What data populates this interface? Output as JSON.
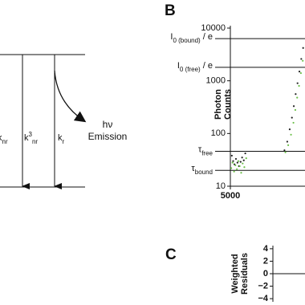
{
  "diagram": {
    "labels": [
      {
        "text": "k",
        "sub": "nr"
      },
      {
        "text": "k",
        "sup": "3",
        "sub": "nr"
      },
      {
        "text": "k",
        "sub": "r"
      }
    ],
    "emission": [
      "hν",
      "Emission"
    ]
  },
  "chart_data": [
    {
      "panel": "B",
      "type": "scatter",
      "y_label": [
        "Photon",
        "Counts"
      ],
      "log_y": true,
      "xlim": [
        5000,
        5400
      ],
      "xticks": [
        5000
      ],
      "ylim": [
        10,
        10000
      ],
      "yticks": [
        10,
        100,
        1000,
        10000
      ],
      "reference_lines": [
        {
          "value": 6300,
          "label": {
            "text": "I",
            "sub": "0 (bound)",
            "tail": " / e"
          }
        },
        {
          "value": 1800,
          "label": {
            "text": "I",
            "sub": "0 (free)",
            "tail": " / e"
          }
        },
        {
          "value": 46,
          "label": {
            "text": "τ",
            "sub": "free"
          }
        },
        {
          "value": 20,
          "label": {
            "text": "τ",
            "sub": "bound"
          }
        }
      ],
      "series": [
        {
          "color": "#222222",
          "x": [
            5008,
            5015,
            5022,
            5030,
            5038,
            5046,
            5055,
            5063,
            5072,
            5080,
            5290,
            5305,
            5318,
            5330,
            5340,
            5350,
            5360,
            5370,
            5380,
            5390
          ],
          "values": [
            38,
            30,
            26,
            33,
            28,
            24,
            29,
            35,
            31,
            42,
            48,
            70,
            120,
            200,
            330,
            560,
            900,
            1500,
            2600,
            4200
          ]
        },
        {
          "color": "#6cc04a",
          "x": [
            5005,
            5012,
            5020,
            5027,
            5035,
            5043,
            5050,
            5058,
            5066,
            5075,
            5085,
            5295,
            5310,
            5325,
            5338,
            5348,
            5358,
            5368,
            5378,
            5388
          ],
          "values": [
            22,
            28,
            19,
            25,
            21,
            30,
            24,
            18,
            27,
            23,
            34,
            44,
            60,
            95,
            160,
            280,
            480,
            800,
            1400,
            2400
          ]
        }
      ]
    },
    {
      "panel": "C",
      "type": "line",
      "y_label": [
        "Weighted",
        "Residuals"
      ],
      "ylim": [
        -4.5,
        4.5
      ],
      "yticks": [
        4,
        2,
        0,
        {
          "value": -2,
          "label": "−2"
        },
        {
          "value": -4,
          "label": "−4"
        }
      ],
      "reference_lines": [
        0
      ]
    }
  ]
}
